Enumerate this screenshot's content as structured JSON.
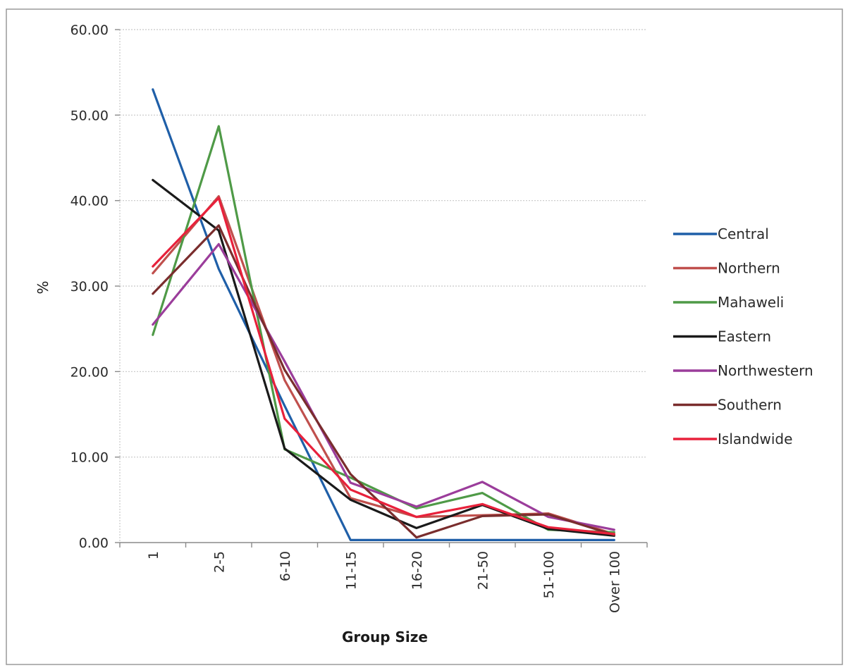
{
  "chart_data": {
    "type": "line",
    "title": "",
    "xlabel": "Group Size",
    "ylabel": "%",
    "ylim": [
      0,
      60
    ],
    "ytick_labels": [
      "0.00",
      "10.00",
      "20.00",
      "30.00",
      "40.00",
      "50.00",
      "60.00"
    ],
    "grid": true,
    "legend_position": "right",
    "categories": [
      "1",
      "2-5",
      "6-10",
      "11-15",
      "16-20",
      "21-50",
      "51-100",
      "Over 100"
    ],
    "series": [
      {
        "name": "Central",
        "color": "#1f5fa8",
        "values": [
          53.0,
          32.0,
          16.0,
          0.3,
          0.3,
          0.3,
          0.3,
          0.3
        ]
      },
      {
        "name": "Northern",
        "color": "#c0504d",
        "values": [
          31.5,
          40.5,
          19.0,
          5.2,
          3.0,
          3.2,
          3.4,
          1.0
        ]
      },
      {
        "name": "Mahaweli",
        "color": "#4f9a47",
        "values": [
          24.3,
          48.7,
          10.9,
          7.6,
          4.0,
          5.8,
          1.5,
          1.2
        ]
      },
      {
        "name": "Eastern",
        "color": "#1a1a1a",
        "values": [
          42.4,
          36.5,
          11.0,
          5.0,
          1.7,
          4.4,
          1.6,
          0.8
        ]
      },
      {
        "name": "Northwestern",
        "color": "#9b3d9b",
        "values": [
          25.5,
          34.9,
          21.2,
          7.0,
          4.2,
          7.1,
          3.0,
          1.5
        ]
      },
      {
        "name": "Southern",
        "color": "#7a2d2d",
        "values": [
          29.1,
          37.1,
          20.2,
          8.0,
          0.6,
          3.1,
          3.3,
          0.9
        ]
      },
      {
        "name": "Islandwide",
        "color": "#e8213b",
        "values": [
          32.3,
          40.3,
          14.5,
          6.2,
          3.0,
          4.5,
          1.8,
          1.0
        ]
      }
    ]
  }
}
